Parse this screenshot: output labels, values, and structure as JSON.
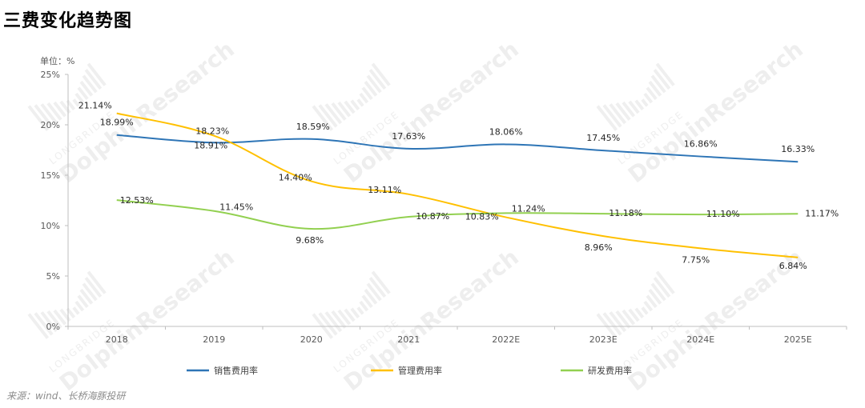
{
  "title": "三费变化趋势图",
  "source": "来源：wind、长桥海豚投研",
  "watermark": {
    "line1": "LONGBRIDGE",
    "line2": "DolphinResearch"
  },
  "chart_data": {
    "type": "line",
    "unit_label": "单位：%",
    "categories": [
      "2018",
      "2019",
      "2020",
      "2021",
      "2022E",
      "2023E",
      "2024E",
      "2025E"
    ],
    "ylim": [
      0,
      25
    ],
    "yticks": [
      0,
      5,
      10,
      15,
      20,
      25
    ],
    "ytick_labels": [
      "0%",
      "5%",
      "10%",
      "15%",
      "20%",
      "25%"
    ],
    "legend_position": "bottom",
    "grid": false,
    "series": [
      {
        "name": "销售费用率",
        "color": "#2e75b6",
        "values": [
          18.99,
          18.23,
          18.59,
          17.63,
          18.06,
          17.45,
          16.86,
          16.33
        ],
        "labels": [
          "18.99%",
          "18.23%",
          "18.59%",
          "17.63%",
          "18.06%",
          "17.45%",
          "16.86%",
          "16.33%"
        ]
      },
      {
        "name": "管理费用率",
        "color": "#ffc000",
        "values": [
          21.14,
          18.91,
          14.4,
          13.11,
          10.83,
          8.96,
          7.75,
          6.84
        ],
        "labels": [
          "21.14%",
          "18.91%",
          "14.40%",
          "13.11%",
          "10.83%",
          "8.96%",
          "7.75%",
          "6.84%"
        ]
      },
      {
        "name": "研发费用率",
        "color": "#92d050",
        "values": [
          12.53,
          11.45,
          9.68,
          10.87,
          11.24,
          11.18,
          11.1,
          11.17
        ],
        "labels": [
          "12.53%",
          "11.45%",
          "9.68%",
          "10.87%",
          "11.24%",
          "11.18%",
          "11.10%",
          "11.17%"
        ]
      }
    ]
  }
}
